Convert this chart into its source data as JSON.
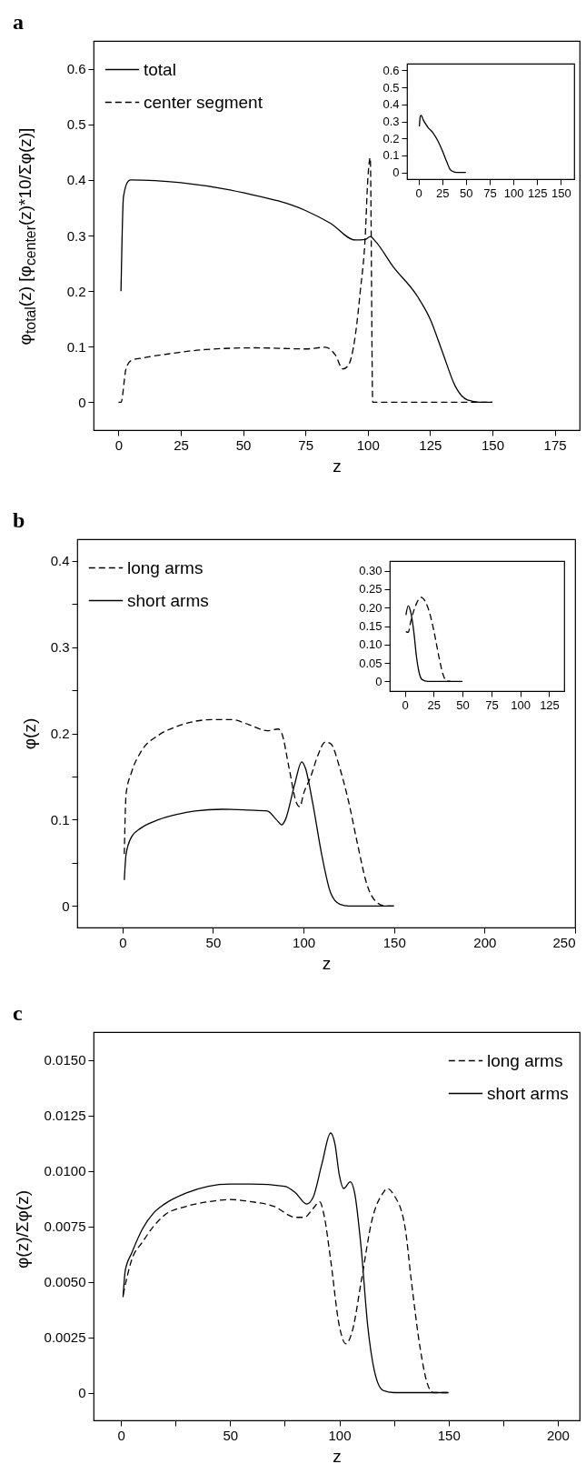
{
  "chart_data": [
    {
      "type": "line",
      "title": "a",
      "xlabel": "z",
      "ylabel": "φ$_{total}$(z)   [φ$_{center}$(z)*10/Σφ(z)]",
      "xlim": [
        -10,
        185
      ],
      "ylim": [
        -0.05,
        0.65
      ],
      "xticks": [
        0,
        25,
        50,
        75,
        100,
        125,
        150,
        175
      ],
      "yticks": [
        0,
        0.1,
        0.2,
        0.3,
        0.4,
        0.5,
        0.6
      ],
      "legend": "top left",
      "grid": false,
      "series": [
        {
          "name": "total",
          "color": "#000000",
          "line_style": "solid",
          "x": [
            1,
            2,
            4,
            5,
            25,
            50,
            75,
            85,
            95,
            99,
            101,
            103,
            110,
            120,
            125,
            130,
            135,
            140,
            145,
            150
          ],
          "values": [
            0.2,
            0.37,
            0.398,
            0.4,
            0.395,
            0.377,
            0.345,
            0.322,
            0.292,
            0.293,
            0.298,
            0.29,
            0.245,
            0.19,
            0.15,
            0.09,
            0.03,
            0.004,
            0,
            0
          ]
        },
        {
          "name": "center segment",
          "color": "#000000",
          "line_style": "dashed",
          "x": [
            0,
            1,
            3,
            5,
            10,
            20,
            35,
            55,
            75,
            83,
            87,
            90,
            92,
            95,
            97,
            99,
            100,
            101,
            102,
            110,
            150
          ],
          "values": [
            0,
            0,
            0.06,
            0.075,
            0.08,
            0.087,
            0.095,
            0.098,
            0.096,
            0.099,
            0.085,
            0.06,
            0.065,
            0.12,
            0.2,
            0.3,
            0.4,
            0.44,
            0,
            0,
            0
          ]
        }
      ]
    },
    {
      "type": "line",
      "xlim": [
        -12,
        164
      ],
      "ylim": [
        -0.04,
        0.64
      ],
      "xticks": [
        0,
        25,
        50,
        75,
        100,
        125,
        150
      ],
      "yticks": [
        0,
        0.1,
        0.2,
        0.3,
        0.4,
        0.5,
        0.6
      ],
      "grid": false,
      "series": [
        {
          "color": "#000000",
          "line_style": "solid",
          "x": [
            1,
            2,
            3,
            5,
            10,
            15,
            20,
            25,
            30,
            33,
            37,
            40,
            50
          ],
          "values": [
            0.27,
            0.33,
            0.335,
            0.31,
            0.265,
            0.235,
            0.19,
            0.13,
            0.06,
            0.02,
            0.003,
            0,
            0
          ]
        }
      ]
    },
    {
      "type": "line",
      "title": "b",
      "xlabel": "z",
      "ylabel": "φ(z)",
      "xlim": [
        -25,
        250
      ],
      "ylim": [
        -0.025,
        0.425
      ],
      "xticks": [
        0,
        50,
        100,
        150,
        200,
        250
      ],
      "yticks": [
        0,
        {
          "value": 0.05,
          "label": null
        },
        0.1,
        {
          "value": 0.15,
          "label": null
        },
        0.2,
        {
          "value": 0.25,
          "label": null
        },
        0.3,
        {
          "value": 0.35,
          "label": null
        },
        0.4
      ],
      "legend": "top left",
      "grid": false,
      "series": [
        {
          "name": "long arms",
          "color": "#000000",
          "line_style": "dashed",
          "x": [
            1,
            2,
            5,
            10,
            20,
            30,
            40,
            50,
            60,
            70,
            80,
            86,
            88,
            92,
            96,
            98,
            100,
            104,
            108,
            112,
            115,
            120,
            125,
            130,
            135,
            140,
            145,
            150
          ],
          "values": [
            0.06,
            0.13,
            0.155,
            0.178,
            0.198,
            0.208,
            0.214,
            0.216,
            0.216,
            0.21,
            0.203,
            0.205,
            0.2,
            0.16,
            0.12,
            0.115,
            0.13,
            0.15,
            0.175,
            0.19,
            0.188,
            0.16,
            0.12,
            0.07,
            0.025,
            0.005,
            0,
            0
          ]
        },
        {
          "name": "short arms",
          "color": "#000000",
          "line_style": "solid",
          "x": [
            1,
            2,
            5,
            10,
            20,
            30,
            40,
            55,
            70,
            80,
            85,
            88,
            90,
            95,
            99,
            101,
            105,
            110,
            115,
            120,
            125,
            150
          ],
          "values": [
            0.03,
            0.06,
            0.08,
            0.09,
            0.1,
            0.106,
            0.11,
            0.112,
            0.111,
            0.11,
            0.1,
            0.094,
            0.1,
            0.14,
            0.167,
            0.16,
            0.12,
            0.06,
            0.015,
            0.002,
            0,
            0
          ]
        }
      ]
    },
    {
      "type": "line",
      "xlim": [
        -13,
        138
      ],
      "ylim": [
        -0.026,
        0.326
      ],
      "xticks": [
        0,
        25,
        50,
        75,
        100,
        125
      ],
      "yticks": [
        0,
        0.05,
        {
          "value": 0.1,
          "label": "0.10"
        },
        0.15,
        {
          "value": 0.2,
          "label": "0.20"
        },
        0.25,
        {
          "value": 0.3,
          "label": "0.30"
        }
      ],
      "grid": false,
      "series": [
        {
          "color": "#000000",
          "line_style": "dashed",
          "x": [
            1,
            3,
            5,
            10,
            14,
            18,
            22,
            25,
            30,
            33,
            36,
            40
          ],
          "values": [
            0.135,
            0.133,
            0.16,
            0.21,
            0.228,
            0.215,
            0.18,
            0.14,
            0.06,
            0.02,
            0.002,
            0
          ]
        },
        {
          "color": "#000000",
          "line_style": "solid",
          "x": [
            1,
            3,
            5,
            8,
            10,
            12,
            15,
            20,
            50
          ],
          "values": [
            0.18,
            0.205,
            0.19,
            0.13,
            0.07,
            0.03,
            0.005,
            0,
            0
          ]
        }
      ]
    },
    {
      "type": "line",
      "title": "c",
      "xlabel": "z",
      "ylabel": "φ(z)/Σφ(z)",
      "xlim": [
        -12.5,
        210
      ],
      "ylim": [
        -0.00125,
        0.01625
      ],
      "xticks": [
        0,
        {
          "value": 25,
          "label": null
        },
        50,
        {
          "value": 75,
          "label": null
        },
        100,
        {
          "value": 125,
          "label": null
        },
        150,
        {
          "value": 175,
          "label": null
        },
        200
      ],
      "yticks": [
        0,
        {
          "value": 0.0025,
          "label": "0.0025"
        },
        {
          "value": 0.005,
          "label": "0.0050"
        },
        {
          "value": 0.0075,
          "label": "0.0075"
        },
        {
          "value": 0.01,
          "label": "0.0100"
        },
        {
          "value": 0.0125,
          "label": "0.0125"
        },
        {
          "value": 0.015,
          "label": "0.0150"
        }
      ],
      "legend": "top right",
      "grid": false,
      "series": [
        {
          "name": "long arms",
          "color": "#000000",
          "line_style": "dashed",
          "x": [
            1,
            5,
            10,
            15,
            20,
            30,
            40,
            50,
            60,
            70,
            80,
            84,
            88,
            91,
            93,
            96,
            100,
            103,
            106,
            110,
            115,
            120,
            122,
            125,
            130,
            133,
            137,
            140,
            143,
            150
          ],
          "values": [
            0.0044,
            0.006,
            0.0068,
            0.0075,
            0.008,
            0.0084,
            0.0086,
            0.0087,
            0.0086,
            0.0084,
            0.0079,
            0.0079,
            0.0083,
            0.0086,
            0.008,
            0.006,
            0.003,
            0.0022,
            0.0028,
            0.005,
            0.0078,
            0.009,
            0.0092,
            0.0089,
            0.0075,
            0.005,
            0.002,
            0.0005,
            0,
            0
          ]
        },
        {
          "name": "short arms",
          "color": "#000000",
          "line_style": "solid",
          "x": [
            1,
            2,
            5,
            10,
            15,
            20,
            30,
            40,
            50,
            60,
            75,
            80,
            85,
            88,
            92,
            96,
            98,
            100,
            102,
            105,
            107,
            110,
            113,
            116,
            120,
            125,
            150
          ],
          "values": [
            0.0043,
            0.0055,
            0.0063,
            0.0074,
            0.0081,
            0.0085,
            0.009,
            0.0093,
            0.0094,
            0.0094,
            0.0093,
            0.009,
            0.0085,
            0.0088,
            0.0103,
            0.0117,
            0.0112,
            0.0098,
            0.0092,
            0.0095,
            0.009,
            0.0065,
            0.003,
            0.001,
            0.0001,
            0,
            0
          ]
        }
      ]
    }
  ]
}
